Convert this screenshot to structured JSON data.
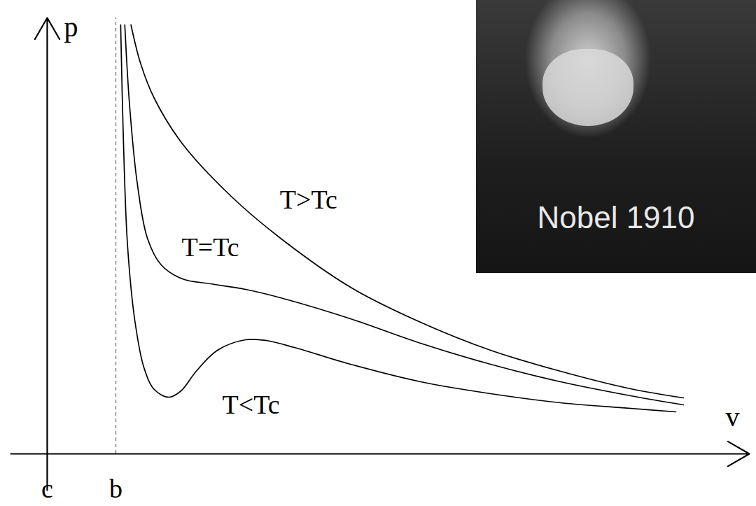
{
  "chart_data": {
    "type": "line",
    "x_label": "v",
    "y_label": "p",
    "xlim": [
      -0.53,
      10.23
    ],
    "ylim": [
      -0.52,
      6.23
    ],
    "xticks": [
      {
        "value": 0,
        "label": "c"
      },
      {
        "value": 1,
        "label": "b"
      }
    ],
    "yticks": [],
    "tick_labels": "x",
    "grid": false,
    "photo_caption": "Nobel 1910",
    "series": [
      {
        "name": "T>Tc",
        "color": "#000000",
        "x": [
          1.22,
          1.36,
          1.56,
          1.97,
          2.68,
          3.4,
          4.42,
          5.44,
          6.46,
          7.48,
          8.5,
          9.27
        ],
        "values": [
          6.13,
          5.58,
          5.08,
          4.43,
          3.68,
          3.08,
          2.38,
          1.88,
          1.48,
          1.18,
          0.93,
          0.8
        ]
      },
      {
        "name": "T=Tc",
        "color": "#000000",
        "x": [
          1.13,
          1.2,
          1.31,
          1.46,
          1.66,
          1.97,
          2.38,
          2.89,
          3.4,
          4.42,
          5.44,
          6.46,
          7.48,
          8.5,
          9.27
        ],
        "values": [
          6.13,
          4.98,
          3.88,
          3.08,
          2.7,
          2.5,
          2.43,
          2.35,
          2.23,
          1.93,
          1.58,
          1.28,
          1.03,
          0.83,
          0.7
        ]
      },
      {
        "name": "T<Tc",
        "color": "#000000",
        "x": [
          1.07,
          1.11,
          1.17,
          1.28,
          1.41,
          1.56,
          1.77,
          1.95,
          2.17,
          2.48,
          2.89,
          3.19,
          3.6,
          4.42,
          5.44,
          6.46,
          7.48,
          8.5,
          9.16
        ],
        "values": [
          6.13,
          4.48,
          2.98,
          1.88,
          1.23,
          0.92,
          0.81,
          0.9,
          1.18,
          1.48,
          1.63,
          1.62,
          1.52,
          1.28,
          1.03,
          0.86,
          0.73,
          0.65,
          0.6
        ]
      }
    ]
  }
}
